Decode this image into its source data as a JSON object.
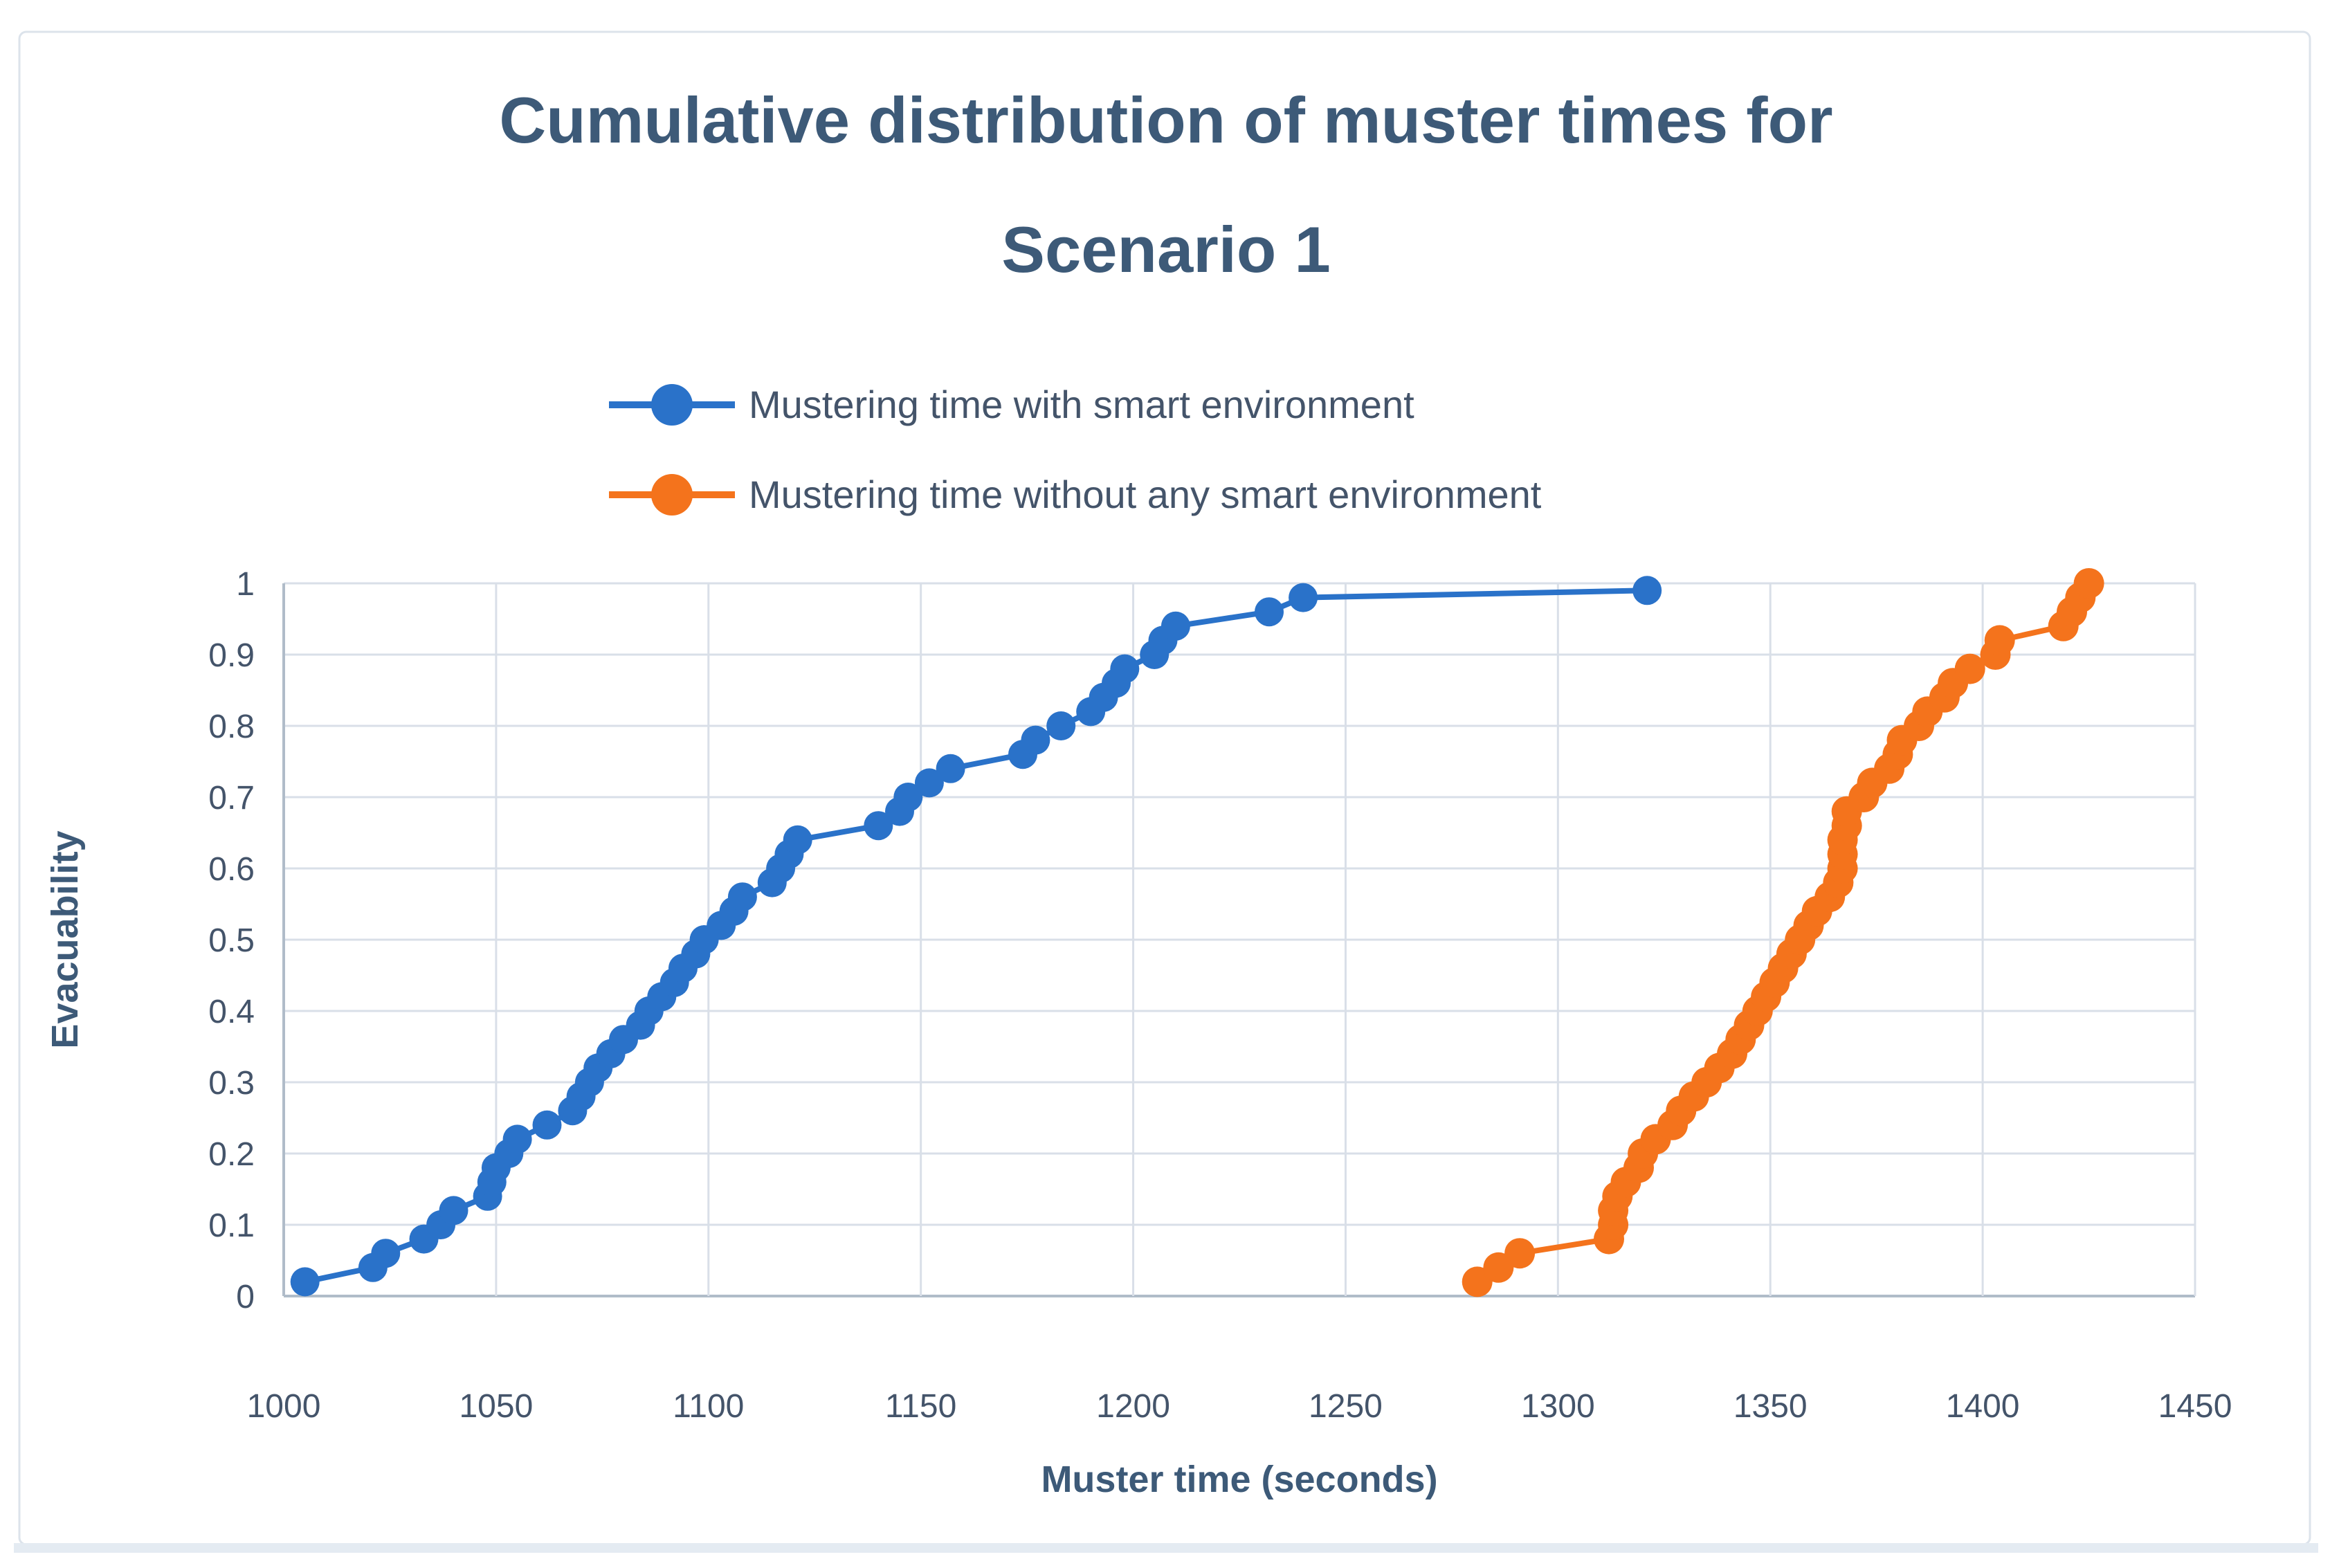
{
  "figure": {
    "title_line1": "Cumulative distribution of muster times for",
    "title_line2": "Scenario 1"
  },
  "chart_data": {
    "type": "line",
    "title": "Cumulative distribution of muster times for Scenario 1",
    "xlabel": "Muster time (seconds)",
    "ylabel": "Evacuability",
    "xlim": [
      1000,
      1450
    ],
    "ylim": [
      0,
      1
    ],
    "xticks": [
      1000,
      1050,
      1100,
      1150,
      1200,
      1250,
      1300,
      1350,
      1400,
      1450
    ],
    "xtick_labels": [
      "1000",
      "1050",
      "1100",
      "1150",
      "1200",
      "1250",
      "1300",
      "1350",
      "1400",
      "1450"
    ],
    "yticks": [
      0,
      0.1,
      0.2,
      0.3,
      0.4,
      0.5,
      0.6,
      0.7,
      0.8,
      0.9,
      1
    ],
    "ytick_labels": [
      "0",
      "0.1",
      "0.2",
      "0.3",
      "0.4",
      "0.5",
      "0.6",
      "0.7",
      "0.8",
      "0.9",
      "1"
    ],
    "grid": true,
    "legend_position": "top-center",
    "series": [
      {
        "name": "Mustering time with smart environment",
        "color": "#2a72c9",
        "marker": "circle",
        "points": [
          [
            1005,
            0.02
          ],
          [
            1021,
            0.04
          ],
          [
            1024,
            0.06
          ],
          [
            1033,
            0.08
          ],
          [
            1037,
            0.1
          ],
          [
            1040,
            0.12
          ],
          [
            1048,
            0.14
          ],
          [
            1049,
            0.16
          ],
          [
            1050,
            0.18
          ],
          [
            1053,
            0.2
          ],
          [
            1055,
            0.22
          ],
          [
            1062,
            0.24
          ],
          [
            1068,
            0.26
          ],
          [
            1070,
            0.28
          ],
          [
            1072,
            0.3
          ],
          [
            1074,
            0.32
          ],
          [
            1077,
            0.34
          ],
          [
            1080,
            0.36
          ],
          [
            1084,
            0.38
          ],
          [
            1086,
            0.4
          ],
          [
            1089,
            0.42
          ],
          [
            1092,
            0.44
          ],
          [
            1094,
            0.46
          ],
          [
            1097,
            0.48
          ],
          [
            1099,
            0.5
          ],
          [
            1103,
            0.52
          ],
          [
            1106,
            0.54
          ],
          [
            1108,
            0.56
          ],
          [
            1115,
            0.58
          ],
          [
            1117,
            0.6
          ],
          [
            1119,
            0.62
          ],
          [
            1121,
            0.64
          ],
          [
            1140,
            0.66
          ],
          [
            1145,
            0.68
          ],
          [
            1147,
            0.7
          ],
          [
            1152,
            0.72
          ],
          [
            1157,
            0.74
          ],
          [
            1174,
            0.76
          ],
          [
            1177,
            0.78
          ],
          [
            1183,
            0.8
          ],
          [
            1190,
            0.82
          ],
          [
            1193,
            0.84
          ],
          [
            1196,
            0.86
          ],
          [
            1198,
            0.88
          ],
          [
            1205,
            0.9
          ],
          [
            1207,
            0.92
          ],
          [
            1210,
            0.94
          ],
          [
            1232,
            0.96
          ],
          [
            1240,
            0.98
          ],
          [
            1321,
            0.99
          ]
        ]
      },
      {
        "name": "Mustering time without any smart environment",
        "color": "#f4731c",
        "marker": "circle",
        "points": [
          [
            1281,
            0.02
          ],
          [
            1286,
            0.04
          ],
          [
            1291,
            0.06
          ],
          [
            1312,
            0.08
          ],
          [
            1313,
            0.1
          ],
          [
            1313,
            0.12
          ],
          [
            1314,
            0.14
          ],
          [
            1316,
            0.16
          ],
          [
            1319,
            0.18
          ],
          [
            1320,
            0.2
          ],
          [
            1323,
            0.22
          ],
          [
            1327,
            0.24
          ],
          [
            1329,
            0.26
          ],
          [
            1332,
            0.28
          ],
          [
            1335,
            0.3
          ],
          [
            1338,
            0.32
          ],
          [
            1341,
            0.34
          ],
          [
            1343,
            0.36
          ],
          [
            1345,
            0.38
          ],
          [
            1347,
            0.4
          ],
          [
            1349,
            0.42
          ],
          [
            1351,
            0.44
          ],
          [
            1353,
            0.46
          ],
          [
            1355,
            0.48
          ],
          [
            1357,
            0.5
          ],
          [
            1359,
            0.52
          ],
          [
            1361,
            0.54
          ],
          [
            1364,
            0.56
          ],
          [
            1366,
            0.58
          ],
          [
            1367,
            0.6
          ],
          [
            1367,
            0.62
          ],
          [
            1367,
            0.64
          ],
          [
            1368,
            0.66
          ],
          [
            1368,
            0.68
          ],
          [
            1372,
            0.7
          ],
          [
            1374,
            0.72
          ],
          [
            1378,
            0.74
          ],
          [
            1380,
            0.76
          ],
          [
            1381,
            0.78
          ],
          [
            1385,
            0.8
          ],
          [
            1387,
            0.82
          ],
          [
            1391,
            0.84
          ],
          [
            1393,
            0.86
          ],
          [
            1397,
            0.88
          ],
          [
            1403,
            0.9
          ],
          [
            1404,
            0.92
          ],
          [
            1419,
            0.94
          ],
          [
            1421,
            0.96
          ],
          [
            1423,
            0.98
          ],
          [
            1425,
            1.0
          ]
        ]
      }
    ]
  },
  "colors": {
    "title_text": "#3d5a78",
    "tick_text": "#44546a",
    "legend_text": "#44546a",
    "gridline": "#d9dfe8",
    "axis_line": "#b0bcc9",
    "figure_border": "#dce3eb",
    "bottom_strip": "#e4ebf2",
    "background": "#ffffff"
  }
}
